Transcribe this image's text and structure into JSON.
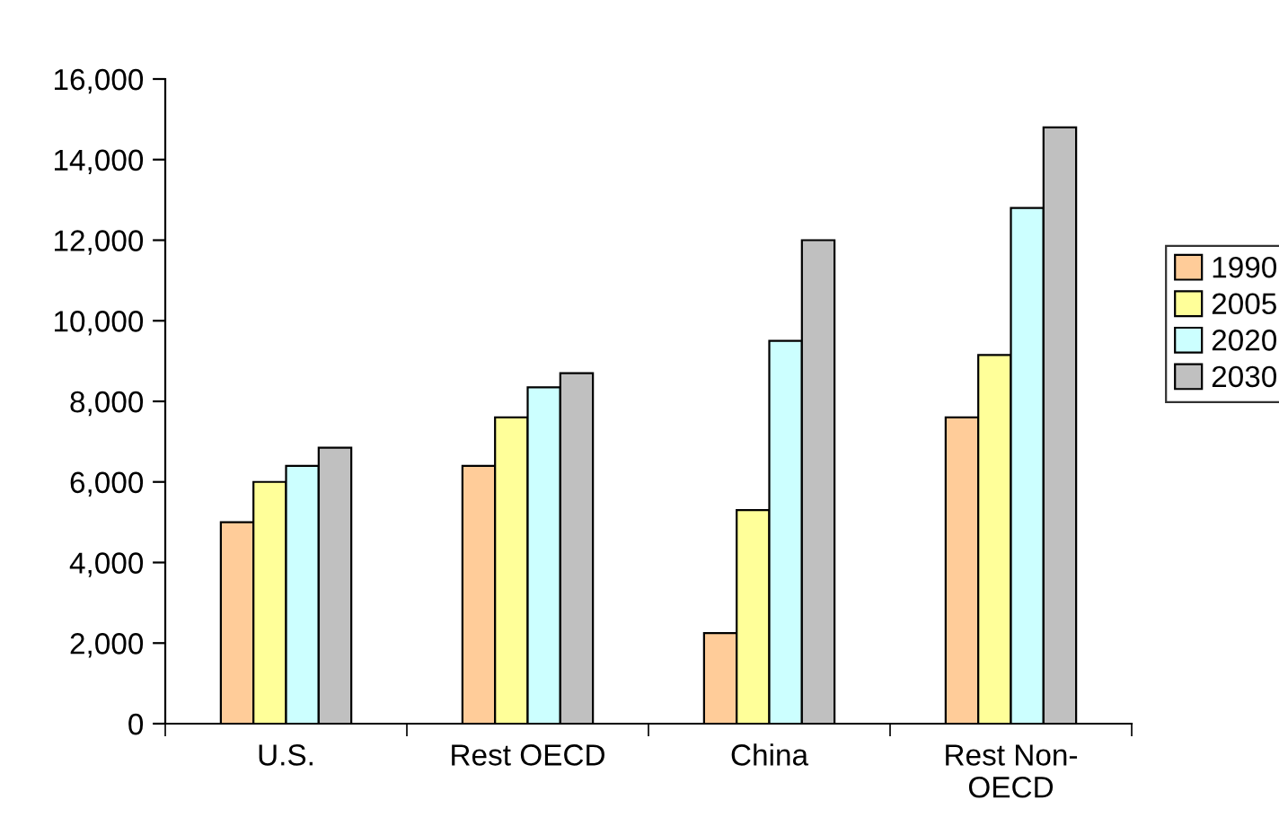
{
  "chart_data": {
    "type": "bar",
    "categories": [
      "U.S.",
      "Rest OECD",
      "China",
      "Rest Non-\nOECD"
    ],
    "series": [
      {
        "name": "1990",
        "color": "#ffcc99",
        "values": [
          5000,
          6400,
          2250,
          7600
        ]
      },
      {
        "name": "2005",
        "color": "#ffff99",
        "values": [
          6000,
          7600,
          5300,
          9150
        ]
      },
      {
        "name": "2020",
        "color": "#ccffff",
        "values": [
          6400,
          8350,
          9500,
          12800
        ]
      },
      {
        "name": "2030",
        "color": "#c0c0c0",
        "values": [
          6850,
          8700,
          12000,
          14800
        ]
      }
    ],
    "ylim": [
      0,
      16000
    ],
    "yticks": [
      0,
      {
        "value": 2000,
        "label": "2,000"
      },
      {
        "value": 4000,
        "label": "4,000"
      },
      {
        "value": 6000,
        "label": "6,000"
      },
      {
        "value": 8000,
        "label": "8,000"
      },
      {
        "value": 10000,
        "label": "10,000"
      },
      {
        "value": 12000,
        "label": "12,000"
      },
      {
        "value": 14000,
        "label": "14,000"
      },
      {
        "value": 16000,
        "label": "16,000"
      }
    ],
    "grid": false,
    "legend": "right"
  }
}
